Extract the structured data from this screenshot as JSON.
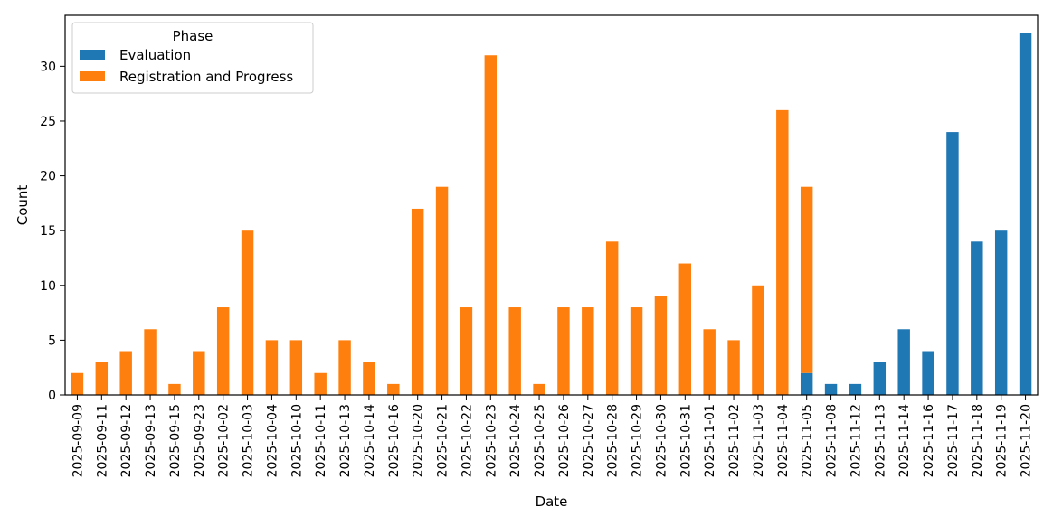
{
  "chart_data": {
    "type": "bar",
    "stacked": true,
    "title": "",
    "xlabel": "Date",
    "ylabel": "Count",
    "ylim": [
      0,
      34.65
    ],
    "yticks": [
      0,
      5,
      10,
      15,
      20,
      25,
      30
    ],
    "grid": false,
    "legend": {
      "title": "Phase",
      "position": "top-left"
    },
    "categories": [
      "2025-09-09",
      "2025-09-11",
      "2025-09-12",
      "2025-09-13",
      "2025-09-15",
      "2025-09-23",
      "2025-10-02",
      "2025-10-03",
      "2025-10-04",
      "2025-10-10",
      "2025-10-11",
      "2025-10-13",
      "2025-10-14",
      "2025-10-16",
      "2025-10-20",
      "2025-10-21",
      "2025-10-22",
      "2025-10-23",
      "2025-10-24",
      "2025-10-25",
      "2025-10-26",
      "2025-10-27",
      "2025-10-28",
      "2025-10-29",
      "2025-10-30",
      "2025-10-31",
      "2025-11-01",
      "2025-11-02",
      "2025-11-03",
      "2025-11-04",
      "2025-11-05",
      "2025-11-08",
      "2025-11-12",
      "2025-11-13",
      "2025-11-14",
      "2025-11-16",
      "2025-11-17",
      "2025-11-18",
      "2025-11-19",
      "2025-11-20"
    ],
    "series": [
      {
        "name": "Evaluation",
        "color": "#1f77b4",
        "values": [
          0,
          0,
          0,
          0,
          0,
          0,
          0,
          0,
          0,
          0,
          0,
          0,
          0,
          0,
          0,
          0,
          0,
          0,
          0,
          0,
          0,
          0,
          0,
          0,
          0,
          0,
          0,
          0,
          0,
          0,
          2,
          1,
          1,
          3,
          6,
          4,
          24,
          14,
          15,
          33
        ]
      },
      {
        "name": "Registration and Progress",
        "color": "#ff7f0e",
        "values": [
          2,
          3,
          4,
          6,
          1,
          4,
          8,
          15,
          5,
          5,
          2,
          5,
          3,
          1,
          17,
          19,
          8,
          31,
          8,
          1,
          8,
          8,
          14,
          8,
          9,
          12,
          6,
          5,
          10,
          26,
          17,
          0,
          0,
          0,
          0,
          0,
          0,
          0,
          0,
          0
        ]
      }
    ]
  }
}
